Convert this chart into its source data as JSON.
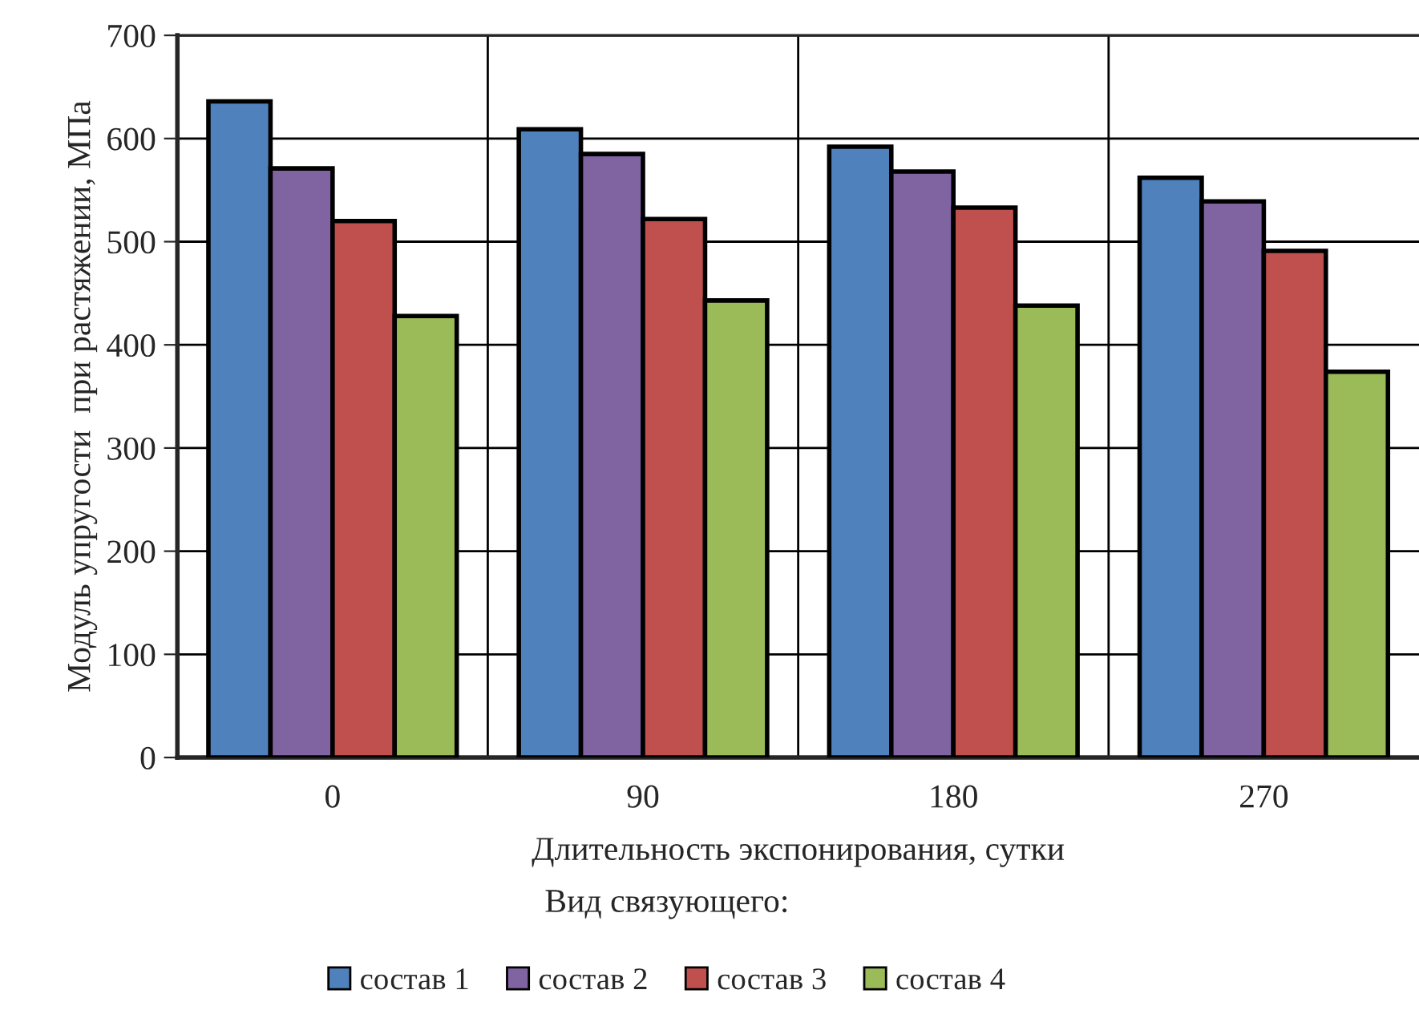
{
  "chart_data": {
    "type": "bar",
    "xlabel": "Длительность экспонирования, сутки",
    "ylabel": "Модуль упругости  при растяжении, МПа",
    "legend_title": "Вид связующего:",
    "categories": [
      "0",
      "90",
      "180",
      "270"
    ],
    "series": [
      {
        "name": "состав 1",
        "color": "#4f81bd",
        "values": [
          636,
          609,
          592,
          562
        ]
      },
      {
        "name": "состав 2",
        "color": "#8064a2",
        "values": [
          571,
          585,
          568,
          539
        ]
      },
      {
        "name": "состав 3",
        "color": "#c0504d",
        "values": [
          520,
          522,
          533,
          491
        ]
      },
      {
        "name": "состав 4",
        "color": "#9bbb59",
        "values": [
          428,
          443,
          438,
          374
        ]
      }
    ],
    "ylim": [
      0,
      700
    ],
    "yticks": [
      0,
      100,
      200,
      300,
      400,
      500,
      600,
      700
    ],
    "grid": true,
    "legend": "bottom"
  }
}
